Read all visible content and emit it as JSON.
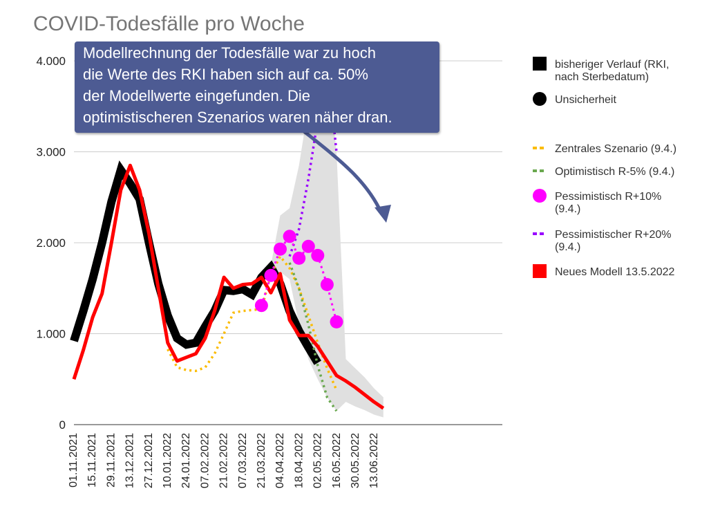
{
  "chart_data": {
    "type": "line",
    "title": "COVID-Todesfälle pro Woche",
    "ylim": [
      0,
      4000
    ],
    "yticks": [
      {
        "value": 0,
        "label": "0"
      },
      {
        "value": 1000,
        "label": "1.000"
      },
      {
        "value": 2000,
        "label": "2.000"
      },
      {
        "value": 3000,
        "label": "3.000"
      },
      {
        "value": 4000,
        "label": "4.000"
      }
    ],
    "xticks": [
      "01.11.2021",
      "15.11.2021",
      "29.11.2021",
      "13.12.2021",
      "27.12.2021",
      "10.01.2022",
      "24.01.2022",
      "07.02.2022",
      "21.02.2022",
      "07.03.2022",
      "21.03.2022",
      "04.04.2022",
      "18.04.2022",
      "02.05.2022",
      "16.05.2022",
      "30.05.2022",
      "13.06.2022"
    ],
    "grid": true,
    "legend_position": "right",
    "series": [
      {
        "name": "bisheriger Verlauf (RKI, nach Sterbedatum)",
        "style": "thick-line",
        "color": "#000000",
        "points": [
          [
            "2021-11-01",
            920
          ],
          [
            "2021-11-08",
            1250
          ],
          [
            "2021-11-15",
            1600
          ],
          [
            "2021-11-22",
            2000
          ],
          [
            "2021-11-29",
            2450
          ],
          [
            "2021-12-06",
            2800
          ],
          [
            "2021-12-13",
            2650
          ],
          [
            "2021-12-20",
            2480
          ],
          [
            "2021-12-27",
            2000
          ],
          [
            "2022-01-03",
            1550
          ],
          [
            "2022-01-10",
            1200
          ],
          [
            "2022-01-17",
            950
          ],
          [
            "2022-01-24",
            880
          ],
          [
            "2022-01-31",
            900
          ],
          [
            "2022-02-07",
            1080
          ],
          [
            "2022-02-14",
            1250
          ],
          [
            "2022-02-21",
            1480
          ],
          [
            "2022-02-28",
            1470
          ],
          [
            "2022-03-07",
            1490
          ],
          [
            "2022-03-14",
            1430
          ],
          [
            "2022-03-21",
            1620
          ],
          [
            "2022-03-28",
            1730
          ],
          [
            "2022-04-04",
            1550
          ],
          [
            "2022-04-11",
            1250
          ],
          [
            "2022-04-18",
            1030
          ],
          [
            "2022-04-25",
            850
          ],
          [
            "2022-05-02",
            680
          ]
        ]
      },
      {
        "name": "Unsicherheit",
        "style": "band",
        "color": "#e0e0e0",
        "upper": [
          [
            "2022-03-28",
            1750
          ],
          [
            "2022-04-04",
            2300
          ],
          [
            "2022-04-11",
            2380
          ],
          [
            "2022-04-18",
            2850
          ],
          [
            "2022-04-25",
            3500
          ],
          [
            "2022-05-02",
            3930
          ],
          [
            "2022-05-09",
            3980
          ],
          [
            "2022-05-16",
            3000
          ],
          [
            "2022-05-23",
            720
          ],
          [
            "2022-05-30",
            620
          ],
          [
            "2022-06-06",
            520
          ],
          [
            "2022-06-13",
            400
          ],
          [
            "2022-06-20",
            300
          ]
        ],
        "lower": [
          [
            "2022-03-28",
            1650
          ],
          [
            "2022-04-04",
            1680
          ],
          [
            "2022-04-11",
            1600
          ],
          [
            "2022-04-18",
            1100
          ],
          [
            "2022-04-25",
            720
          ],
          [
            "2022-05-02",
            500
          ],
          [
            "2022-05-09",
            300
          ],
          [
            "2022-05-16",
            150
          ],
          [
            "2022-05-23",
            250
          ],
          [
            "2022-05-30",
            200
          ],
          [
            "2022-06-06",
            160
          ],
          [
            "2022-06-13",
            110
          ],
          [
            "2022-06-20",
            80
          ]
        ]
      },
      {
        "name": "Zentrales Szenario (9.4.)",
        "style": "dotted",
        "color": "#fbbc04",
        "points": [
          [
            "2022-01-10",
            830
          ],
          [
            "2022-01-17",
            630
          ],
          [
            "2022-01-24",
            600
          ],
          [
            "2022-01-31",
            590
          ],
          [
            "2022-02-07",
            630
          ],
          [
            "2022-02-14",
            780
          ],
          [
            "2022-02-21",
            1000
          ],
          [
            "2022-02-28",
            1230
          ],
          [
            "2022-03-07",
            1250
          ],
          [
            "2022-03-14",
            1260
          ],
          [
            "2022-03-21",
            1270
          ],
          [
            "2022-03-28",
            1650
          ],
          [
            "2022-04-04",
            1850
          ],
          [
            "2022-04-11",
            1720
          ],
          [
            "2022-04-18",
            1500
          ],
          [
            "2022-04-25",
            1200
          ],
          [
            "2022-05-02",
            900
          ],
          [
            "2022-05-09",
            620
          ],
          [
            "2022-05-16",
            380
          ]
        ]
      },
      {
        "name": "Optimistisch R-5% (9.4.)",
        "style": "dotted",
        "color": "#6aa84f",
        "points": [
          [
            "2022-04-11",
            1780
          ],
          [
            "2022-04-18",
            1500
          ],
          [
            "2022-04-25",
            1100
          ],
          [
            "2022-05-02",
            650
          ],
          [
            "2022-05-09",
            300
          ],
          [
            "2022-05-16",
            150
          ]
        ]
      },
      {
        "name": "Pessimistisch R+10% (9.4.)",
        "style": "dots",
        "color": "#ff00ff",
        "points": [
          [
            "2022-03-21",
            1310
          ],
          [
            "2022-03-28",
            1640
          ],
          [
            "2022-04-04",
            1930
          ],
          [
            "2022-04-11",
            2070
          ],
          [
            "2022-04-18",
            1830
          ],
          [
            "2022-04-25",
            1960
          ],
          [
            "2022-05-02",
            1860
          ],
          [
            "2022-05-09",
            1540
          ],
          [
            "2022-05-16",
            1130
          ]
        ]
      },
      {
        "name": "Pessimistischer R+20% (9.4.)",
        "style": "dotted",
        "color": "#9900ff",
        "points": [
          [
            "2022-04-11",
            1850
          ],
          [
            "2022-04-18",
            2150
          ],
          [
            "2022-04-25",
            2700
          ],
          [
            "2022-05-02",
            3350
          ],
          [
            "2022-05-09",
            4000
          ],
          [
            "2022-05-16",
            3000
          ]
        ]
      },
      {
        "name": "Neues Modell 13.5.2022",
        "style": "line",
        "color": "#ff0000",
        "points": [
          [
            "2021-11-01",
            500
          ],
          [
            "2021-11-08",
            820
          ],
          [
            "2021-11-15",
            1180
          ],
          [
            "2021-11-22",
            1440
          ],
          [
            "2021-11-29",
            2000
          ],
          [
            "2021-12-06",
            2580
          ],
          [
            "2021-12-13",
            2850
          ],
          [
            "2021-12-20",
            2580
          ],
          [
            "2021-12-27",
            2100
          ],
          [
            "2022-01-03",
            1500
          ],
          [
            "2022-01-10",
            900
          ],
          [
            "2022-01-17",
            700
          ],
          [
            "2022-01-24",
            740
          ],
          [
            "2022-01-31",
            780
          ],
          [
            "2022-02-07",
            950
          ],
          [
            "2022-02-14",
            1250
          ],
          [
            "2022-02-21",
            1620
          ],
          [
            "2022-02-28",
            1500
          ],
          [
            "2022-03-07",
            1540
          ],
          [
            "2022-03-14",
            1550
          ],
          [
            "2022-03-21",
            1620
          ],
          [
            "2022-03-28",
            1450
          ],
          [
            "2022-04-04",
            1660
          ],
          [
            "2022-04-11",
            1150
          ],
          [
            "2022-04-18",
            980
          ],
          [
            "2022-04-25",
            980
          ],
          [
            "2022-05-02",
            860
          ],
          [
            "2022-05-09",
            700
          ],
          [
            "2022-05-16",
            540
          ],
          [
            "2022-05-23",
            480
          ],
          [
            "2022-05-30",
            410
          ],
          [
            "2022-06-06",
            330
          ],
          [
            "2022-06-13",
            250
          ],
          [
            "2022-06-20",
            180
          ]
        ]
      }
    ],
    "annotation": {
      "lines": [
        "Modellrechnung der Todesfälle war zu hoch",
        "die Werte des RKI haben sich auf ca. 50%",
        "der Modellwerte eingefunden. Die",
        "optimistischeren Szenarios waren näher dran."
      ],
      "box_color": "#4d5b93",
      "text_color": "#ffffff"
    }
  }
}
